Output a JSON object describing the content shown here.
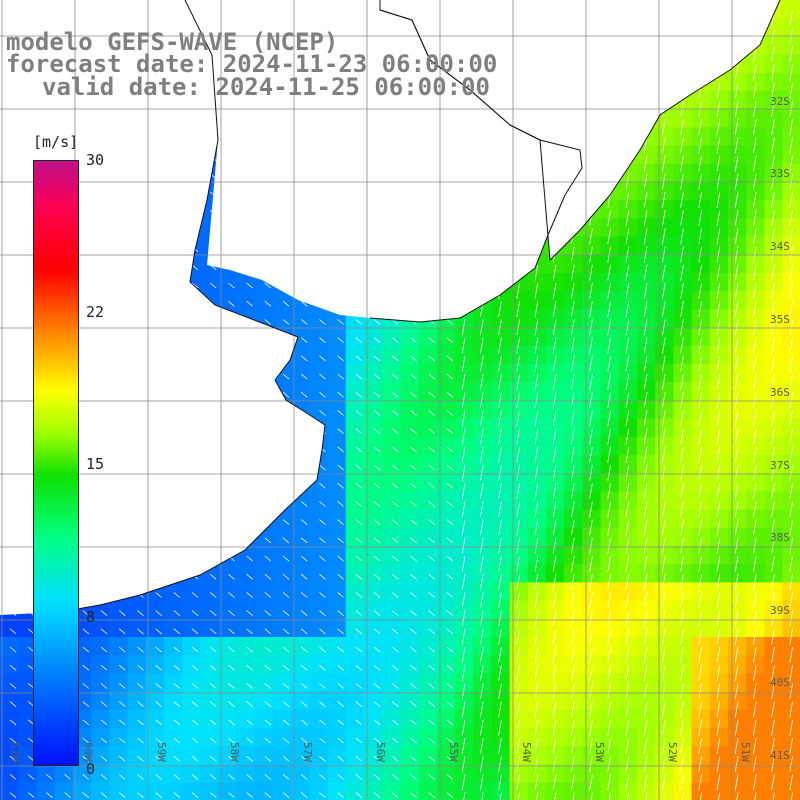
{
  "title": {
    "line1": "modelo GEFS-WAVE (NCEP)",
    "line2": "forecast date: 2024-11-23 06:00:00",
    "line3": "valid date: 2024-11-25 06:00:00"
  },
  "colorbar": {
    "unit": "[m/s]",
    "ticks": [
      "30",
      "22",
      "15",
      "8",
      "0"
    ],
    "tick_values": [
      30,
      22,
      15,
      8,
      0
    ],
    "min": 0,
    "max": 30,
    "colors": [
      "#0010ff",
      "#0070ff",
      "#00e0ff",
      "#00ff80",
      "#10e000",
      "#a0ff00",
      "#ffff00",
      "#ff8000",
      "#ff0000",
      "#ff0050",
      "#c0108a"
    ]
  },
  "lat_labels": [
    "32S",
    "33S",
    "34S",
    "35S",
    "36S",
    "37S",
    "38S",
    "39S",
    "40S",
    "41S"
  ],
  "lon_labels": [
    "61W",
    "60W",
    "59W",
    "58W",
    "57W",
    "56W",
    "55W",
    "54W",
    "53W",
    "52W",
    "51W"
  ],
  "map_colors": {
    "land": "#ffffff",
    "coast": "#111111",
    "grid": "#8a8a8a",
    "arrow": "#ffffff"
  }
}
